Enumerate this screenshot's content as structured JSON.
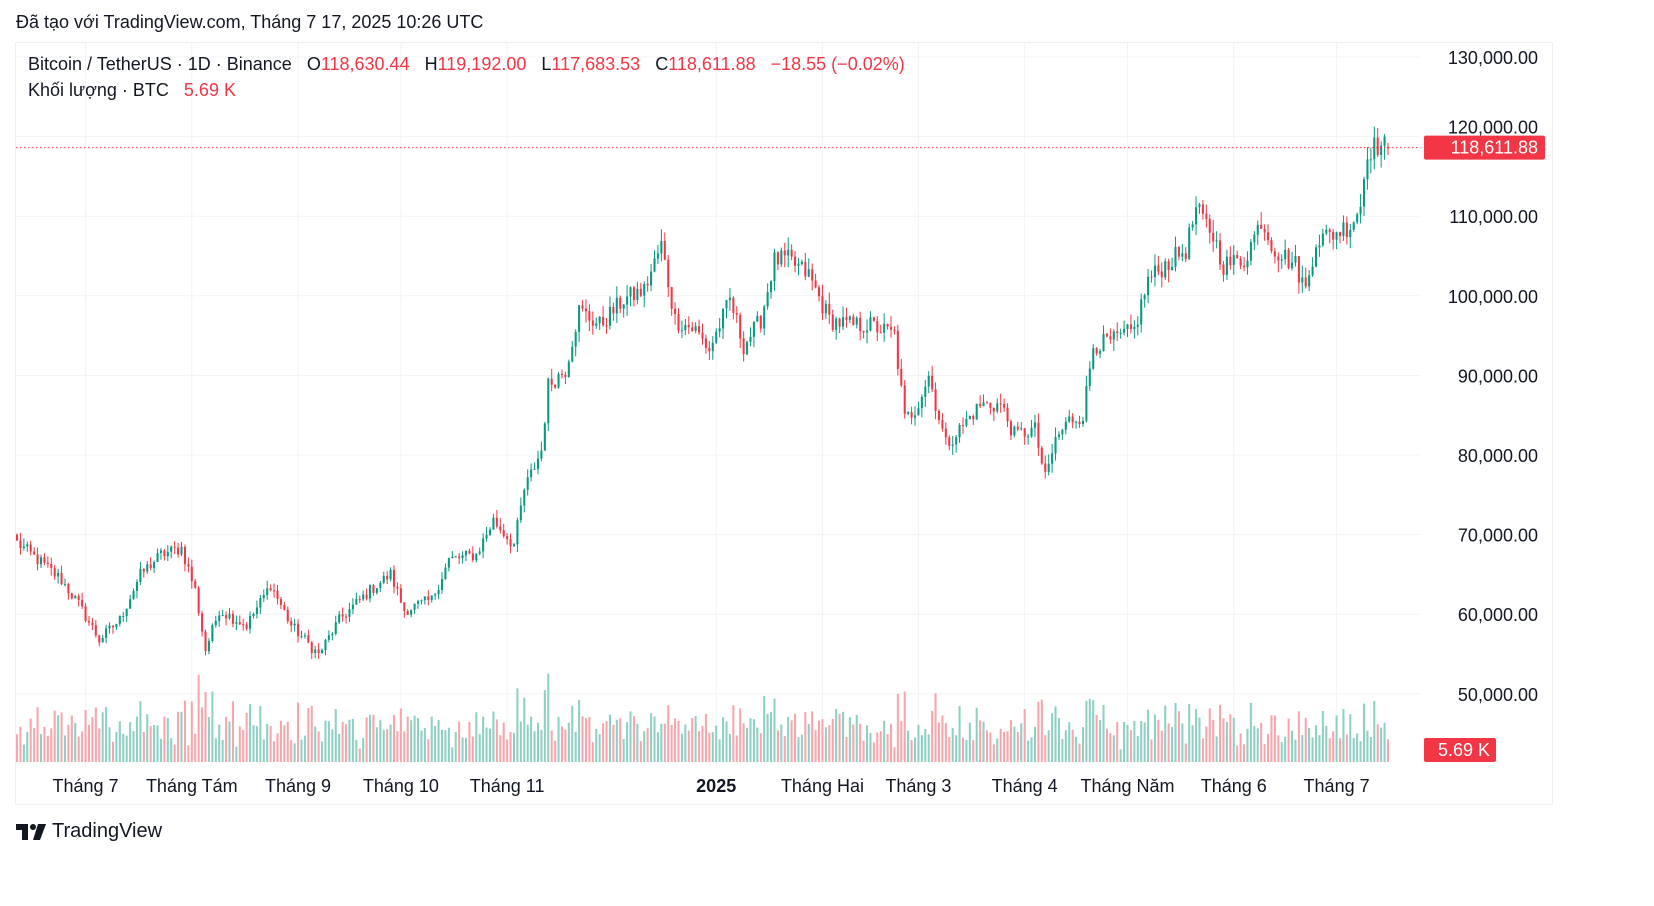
{
  "header": {
    "created": "Đã tạo với TradingView.com, Tháng 7 17, 2025 10:26 UTC"
  },
  "legend": {
    "symbol": "Bitcoin / TetherUS · 1D · Binance",
    "o_label": "O",
    "o": "118,630.44",
    "h_label": "H",
    "h": "119,192.00",
    "l_label": "L",
    "l": "117,683.53",
    "c_label": "C",
    "c": "118,611.88",
    "change": "−18.55 (−0.02%)",
    "volume_label": "Khối lượng · BTC",
    "volume": "5.69 K"
  },
  "colors": {
    "up": "#089981",
    "down": "#f23645",
    "up_vol": "#8fd0c4",
    "down_vol": "#f7a6ad",
    "grid": "#f2f3f6"
  },
  "footer": {
    "brand": "TradingView"
  },
  "chart_data": {
    "type": "candlestick",
    "title": "Bitcoin / TetherUS · 1D · Binance",
    "ylim": [
      42000,
      136000
    ],
    "y_ticks": [
      {
        "value": 130000,
        "label": "130,000.00"
      },
      {
        "value": 120000,
        "label": "120,000.00"
      },
      {
        "value": 110000,
        "label": "110,000.00"
      },
      {
        "value": 100000,
        "label": "100,000.00"
      },
      {
        "value": 90000,
        "label": "90,000.00"
      },
      {
        "value": 80000,
        "label": "80,000.00"
      },
      {
        "value": 70000,
        "label": "70,000.00"
      },
      {
        "value": 60000,
        "label": "60,000.00"
      },
      {
        "value": 50000,
        "label": "50,000.00"
      }
    ],
    "x_ticks": [
      {
        "day": 20,
        "label": "Tháng 7",
        "bold": false
      },
      {
        "day": 51,
        "label": "Tháng Tám",
        "bold": false
      },
      {
        "day": 82,
        "label": "Tháng 9",
        "bold": false
      },
      {
        "day": 112,
        "label": "Tháng 10",
        "bold": false
      },
      {
        "day": 143,
        "label": "Tháng 11",
        "bold": false
      },
      {
        "day": 204,
        "label": "2025",
        "bold": true
      },
      {
        "day": 235,
        "label": "Tháng Hai",
        "bold": false
      },
      {
        "day": 263,
        "label": "Tháng 3",
        "bold": false
      },
      {
        "day": 294,
        "label": "Tháng 4",
        "bold": false
      },
      {
        "day": 324,
        "label": "Tháng Năm",
        "bold": false
      },
      {
        "day": 355,
        "label": "Tháng 6",
        "bold": false
      },
      {
        "day": 385,
        "label": "Tháng 7",
        "bold": false
      }
    ],
    "total_days": 401,
    "close_anchors": [
      [
        0,
        69000
      ],
      [
        13,
        64300
      ],
      [
        18,
        61200
      ],
      [
        24,
        56800
      ],
      [
        30,
        59300
      ],
      [
        36,
        65000
      ],
      [
        42,
        67500
      ],
      [
        48,
        68300
      ],
      [
        52,
        63000
      ],
      [
        55,
        55500
      ],
      [
        59,
        60500
      ],
      [
        67,
        58600
      ],
      [
        74,
        63700
      ],
      [
        80,
        58600
      ],
      [
        88,
        54900
      ],
      [
        94,
        59300
      ],
      [
        103,
        63000
      ],
      [
        109,
        65000
      ],
      [
        113,
        60500
      ],
      [
        121,
        61800
      ],
      [
        126,
        66800
      ],
      [
        134,
        67500
      ],
      [
        139,
        71800
      ],
      [
        145,
        68700
      ],
      [
        148,
        75600
      ],
      [
        153,
        80600
      ],
      [
        155,
        88800
      ],
      [
        160,
        90700
      ],
      [
        164,
        98200
      ],
      [
        170,
        96300
      ],
      [
        177,
        99500
      ],
      [
        183,
        100700
      ],
      [
        188,
        106400
      ],
      [
        192,
        97000
      ],
      [
        198,
        95700
      ],
      [
        202,
        93200
      ],
      [
        208,
        99500
      ],
      [
        212,
        93800
      ],
      [
        217,
        97000
      ],
      [
        221,
        104500
      ],
      [
        225,
        104500
      ],
      [
        231,
        102600
      ],
      [
        237,
        97000
      ],
      [
        243,
        96300
      ],
      [
        249,
        96300
      ],
      [
        256,
        95100
      ],
      [
        259,
        84400
      ],
      [
        262,
        85700
      ],
      [
        266,
        90000
      ],
      [
        271,
        81300
      ],
      [
        275,
        83200
      ],
      [
        281,
        86300
      ],
      [
        287,
        86300
      ],
      [
        291,
        82500
      ],
      [
        297,
        83200
      ],
      [
        300,
        76900
      ],
      [
        303,
        81900
      ],
      [
        307,
        84400
      ],
      [
        311,
        85000
      ],
      [
        314,
        93800
      ],
      [
        320,
        94400
      ],
      [
        326,
        95700
      ],
      [
        330,
        102000
      ],
      [
        335,
        103900
      ],
      [
        341,
        105800
      ],
      [
        344,
        110800
      ],
      [
        349,
        107600
      ],
      [
        352,
        103900
      ],
      [
        358,
        104500
      ],
      [
        363,
        109500
      ],
      [
        367,
        105800
      ],
      [
        373,
        103900
      ],
      [
        376,
        100700
      ],
      [
        379,
        107000
      ],
      [
        383,
        107600
      ],
      [
        389,
        108900
      ],
      [
        392,
        111400
      ],
      [
        394,
        118300
      ],
      [
        397,
        118900
      ],
      [
        400,
        118612
      ]
    ],
    "last_candle": {
      "open": 118630.44,
      "high": 119192.0,
      "low": 117683.53,
      "close": 118611.88,
      "volume_k": 5.69
    },
    "current_price_label": "118,611.88",
    "volume_axis_label": "5.69 K"
  }
}
